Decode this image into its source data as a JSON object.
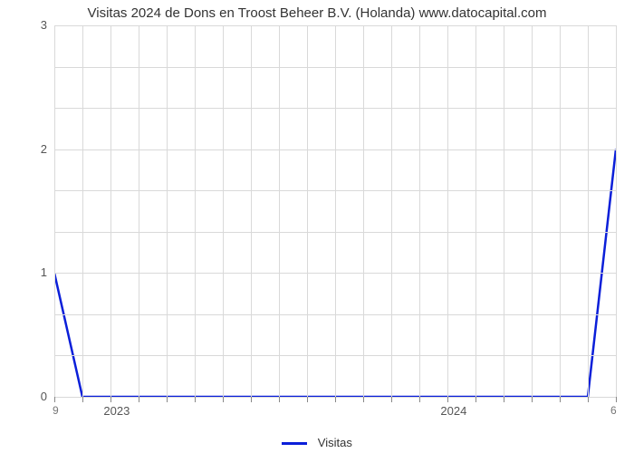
{
  "chart": {
    "type": "line",
    "title": "Visitas 2024 de Dons en Troost Beheer B.V. (Holanda) www.datocapital.com",
    "title_fontsize": 15,
    "title_color": "#333333",
    "background_color": "#ffffff",
    "grid_color": "#d9d9d9",
    "axis_text_color": "#555555",
    "corner_text_color": "#777777",
    "ylim": [
      0,
      3
    ],
    "yticks": [
      0,
      1,
      2,
      3
    ],
    "ylabel_fontsize": 13,
    "xticks_major": [
      {
        "pos": 0.12,
        "label": "2023"
      },
      {
        "pos": 0.72,
        "label": "2024"
      }
    ],
    "xticks_minor_pos": [
      0.0,
      0.05,
      0.1,
      0.15,
      0.2,
      0.25,
      0.3,
      0.35,
      0.4,
      0.45,
      0.5,
      0.55,
      0.6,
      0.65,
      0.7,
      0.75,
      0.8,
      0.85,
      0.9,
      0.95,
      1.0
    ],
    "grid_v_pos": [
      0.0,
      0.05,
      0.1,
      0.15,
      0.2,
      0.25,
      0.3,
      0.35,
      0.4,
      0.45,
      0.5,
      0.55,
      0.6,
      0.65,
      0.7,
      0.75,
      0.8,
      0.85,
      0.9,
      0.95,
      1.0
    ],
    "grid_h_values": [
      0,
      0.3333,
      0.6667,
      1,
      1.3333,
      1.6667,
      2,
      2.3333,
      2.6667,
      3
    ],
    "corner_left": "9",
    "corner_right": "6",
    "series": {
      "name": "Visitas",
      "color": "#0b1fd9",
      "line_width": 2.5,
      "points_xy": [
        [
          0.0,
          1.0
        ],
        [
          0.05,
          0.0
        ],
        [
          0.95,
          0.0
        ],
        [
          1.0,
          2.0
        ]
      ]
    },
    "legend": {
      "label": "Visitas",
      "swatch_color": "#0b1fd9",
      "fontsize": 13
    }
  }
}
